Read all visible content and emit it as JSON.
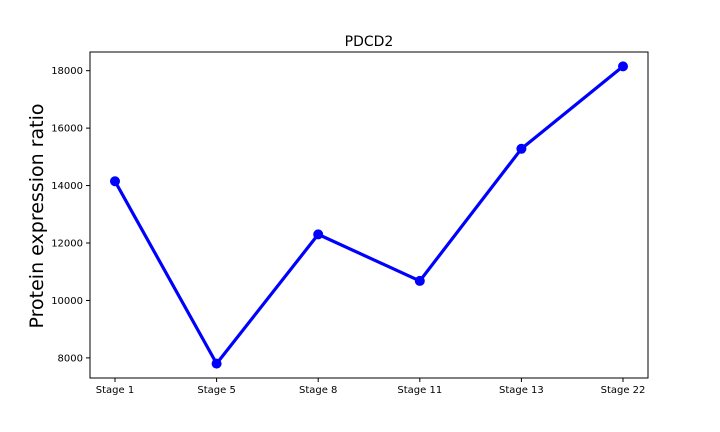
{
  "chart_data": {
    "type": "line",
    "title": "PDCD2",
    "xlabel": "",
    "ylabel": "Protein expression ratio",
    "categories": [
      "Stage 1",
      "Stage 5",
      "Stage 8",
      "Stage 11",
      "Stage 13",
      "Stage 22"
    ],
    "series": [
      {
        "values": [
          14150,
          7800,
          12300,
          10680,
          15280,
          18150
        ]
      }
    ],
    "y_ticks": [
      8000,
      10000,
      12000,
      14000,
      16000,
      18000
    ],
    "ylim": [
      7300,
      18650
    ],
    "grid": false,
    "legend": "none",
    "colors": {
      "line": "#0000ff",
      "marker": "#0000ff",
      "axis": "#000000"
    }
  }
}
